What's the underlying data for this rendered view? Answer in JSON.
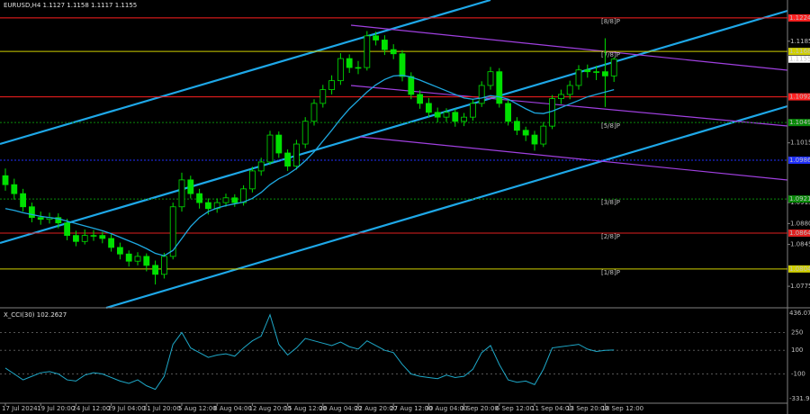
{
  "chart_data": {
    "type": "candlestick",
    "symbol": "EURUSD,H4",
    "categories": [
      "17 Jul 2024",
      null,
      null,
      null,
      "19 Jul 20:00",
      null,
      null,
      null,
      "24 Jul 12:00",
      null,
      null,
      null,
      "29 Jul 04:00",
      null,
      null,
      null,
      "31 Jul 20:00",
      null,
      null,
      null,
      "5 Aug 12:00",
      null,
      null,
      null,
      "8 Aug 04:00",
      null,
      null,
      null,
      "12 Aug 20:00",
      null,
      null,
      null,
      "15 Aug 12:00",
      null,
      null,
      null,
      "20 Aug 04:00",
      null,
      null,
      null,
      "22 Aug 20:00",
      null,
      null,
      null,
      "27 Aug 12:00",
      null,
      null,
      null,
      "30 Aug 04:00",
      null,
      null,
      null,
      "3 Sep 20:00",
      null,
      null,
      null,
      "6 Sep 12:00",
      null,
      null,
      null,
      "11 Sep 04:00",
      null,
      null,
      null,
      "13 Sep 20:00",
      null,
      null,
      null,
      "18 Sep 12:00",
      null
    ],
    "open": [
      1.096,
      1.0945,
      1.093,
      1.0908,
      1.089,
      1.0887,
      1.089,
      1.0881,
      1.086,
      1.085,
      1.086,
      1.086,
      1.0855,
      1.084,
      1.0829,
      1.0817,
      1.0825,
      1.081,
      1.0795,
      1.0825,
      1.0908,
      1.0953,
      1.093,
      1.0915,
      1.0905,
      1.0915,
      1.0923,
      1.0915,
      1.0938,
      1.0968,
      1.0983,
      1.1028,
      1.0998,
      1.0976,
      1.1013,
      1.1051,
      1.1081,
      1.1104,
      1.1119,
      1.1156,
      1.1141,
      1.1141,
      1.1194,
      1.1187,
      1.1171,
      1.1164,
      1.1126,
      1.1096,
      1.1081,
      1.1066,
      1.1058,
      1.1066,
      1.1051,
      1.1058,
      1.1081,
      1.1111,
      1.1134,
      1.1081,
      1.1051,
      1.1036,
      1.1028,
      1.1013,
      1.1043,
      1.1089,
      1.1096,
      1.1111,
      1.1137,
      1.1134,
      1.1134,
      1.1127
    ],
    "high": [
      1.0972,
      1.0955,
      1.0938,
      1.0915,
      1.09,
      1.0898,
      1.0897,
      1.0888,
      1.0868,
      1.087,
      1.0869,
      1.0866,
      1.0862,
      1.0848,
      1.0835,
      1.0832,
      1.083,
      1.0818,
      1.0831,
      1.0915,
      1.0965,
      1.096,
      1.0938,
      1.0922,
      1.0922,
      1.093,
      1.0929,
      1.0944,
      1.0975,
      1.099,
      1.1035,
      1.1034,
      1.1004,
      1.102,
      1.1058,
      1.1088,
      1.1112,
      1.1128,
      1.1165,
      1.1163,
      1.1152,
      1.1202,
      1.1201,
      1.1195,
      1.118,
      1.117,
      1.1133,
      1.1103,
      1.109,
      1.1074,
      1.1073,
      1.1072,
      1.1065,
      1.1088,
      1.1118,
      1.1142,
      1.114,
      1.1088,
      1.1058,
      1.1042,
      1.1035,
      1.105,
      1.1095,
      1.1104,
      1.1119,
      1.1145,
      1.1146,
      1.1144,
      1.119,
      1.1158
    ],
    "low": [
      1.0935,
      1.092,
      1.09,
      1.0882,
      1.0878,
      1.088,
      1.0872,
      1.0852,
      1.0842,
      1.0845,
      1.0851,
      1.0847,
      1.0833,
      1.082,
      1.0808,
      1.081,
      1.08,
      1.0778,
      1.0788,
      1.082,
      1.09,
      1.0922,
      1.0905,
      1.0895,
      1.0898,
      1.0908,
      1.0908,
      1.091,
      1.0932,
      1.096,
      1.0978,
      1.099,
      1.0968,
      1.097,
      1.1006,
      1.1044,
      1.1074,
      1.1096,
      1.1112,
      1.1132,
      1.113,
      1.1136,
      1.1178,
      1.1162,
      1.1155,
      1.1118,
      1.1088,
      1.1072,
      1.1058,
      1.1049,
      1.105,
      1.1042,
      1.1043,
      1.1052,
      1.1075,
      1.1104,
      1.1074,
      1.1044,
      1.1028,
      1.1018,
      1.1002,
      1.1008,
      1.1038,
      1.108,
      1.1088,
      1.1104,
      1.1124,
      1.112,
      1.1075,
      1.1117
    ],
    "close": [
      1.0945,
      1.093,
      1.0908,
      1.089,
      1.0887,
      1.089,
      1.0881,
      1.086,
      1.085,
      1.086,
      1.086,
      1.0855,
      1.084,
      1.0829,
      1.0817,
      1.0825,
      1.081,
      1.0795,
      1.0825,
      1.0908,
      1.0953,
      1.093,
      1.0915,
      1.0905,
      1.0915,
      1.0923,
      1.0915,
      1.0938,
      1.0968,
      1.0983,
      1.1028,
      1.0998,
      1.0976,
      1.1013,
      1.1051,
      1.1081,
      1.1104,
      1.1119,
      1.1156,
      1.1141,
      1.1141,
      1.1194,
      1.1187,
      1.1171,
      1.1164,
      1.1126,
      1.1096,
      1.1081,
      1.1066,
      1.1058,
      1.1066,
      1.1051,
      1.1058,
      1.1081,
      1.1111,
      1.1134,
      1.1081,
      1.1051,
      1.1036,
      1.1028,
      1.1013,
      1.1043,
      1.1089,
      1.1096,
      1.1111,
      1.1137,
      1.1134,
      1.1134,
      1.1127,
      1.1155
    ],
    "candle_color": "#00e000",
    "ma": {
      "color": "#1ea8e0",
      "values": [
        1.0905,
        1.0902,
        1.0898,
        1.0895,
        1.0892,
        1.089,
        1.0888,
        1.0884,
        1.088,
        1.0876,
        1.0872,
        1.0868,
        1.0863,
        1.0857,
        1.0851,
        1.0845,
        1.0838,
        1.083,
        1.0826,
        1.0835,
        1.0855,
        1.0875,
        1.089,
        1.09,
        1.0906,
        1.091,
        1.0913,
        1.0916,
        1.0922,
        1.0932,
        1.0945,
        1.0955,
        1.0962,
        1.0972,
        1.0985,
        1.1,
        1.1018,
        1.1036,
        1.1055,
        1.1072,
        1.1086,
        1.11,
        1.1112,
        1.1121,
        1.1127,
        1.1128,
        1.1125,
        1.112,
        1.1114,
        1.1108,
        1.1102,
        1.1096,
        1.109,
        1.1088,
        1.109,
        1.1094,
        1.1092,
        1.1088,
        1.108,
        1.1072,
        1.1065,
        1.1064,
        1.1068,
        1.1074,
        1.108,
        1.1086,
        1.1092,
        1.1096,
        1.11,
        1.1104
      ]
    },
    "levels": [
      {
        "value": 1.1224,
        "tag": "[8/8]P",
        "color": "#ff2020"
      },
      {
        "value": 1.1168,
        "tag": "[7/8]P",
        "color": "#d0d000"
      },
      {
        "value": 1.1092,
        "color": "#ff2020"
      },
      {
        "value": 1.1049,
        "tag": "[5/8]P",
        "color": "#0a8a0a"
      },
      {
        "value": 1.0986,
        "color": "#2030ff"
      },
      {
        "value": 1.0921,
        "tag": "[3/8]P",
        "color": "#0a8a0a"
      },
      {
        "value": 1.0864,
        "tag": "[2/8]P",
        "color": "#e02020"
      },
      {
        "value": 1.0804,
        "tag": "[1/8]P",
        "color": "#d0d000"
      }
    ],
    "ylim": [
      1.0742,
      1.1254
    ],
    "yticks": [
      1.1185,
      1.1015,
      1.0915,
      {
        "value": 1.088,
        "label": "1.0880"
      },
      1.0845,
      1.0775
    ],
    "indicator": {
      "title": "X_CCI(30)",
      "color": "#1ea8c8",
      "values": [
        -50,
        -100,
        -150,
        -120,
        -90,
        -80,
        -100,
        -150,
        -160,
        -110,
        -90,
        -100,
        -130,
        -160,
        -180,
        -150,
        -200,
        -230,
        -120,
        150,
        250,
        120,
        80,
        40,
        60,
        70,
        50,
        120,
        180,
        220,
        400,
        150,
        60,
        120,
        200,
        180,
        160,
        140,
        170,
        130,
        110,
        180,
        140,
        100,
        80,
        -20,
        -100,
        -120,
        -130,
        -140,
        -110,
        -130,
        -120,
        -60,
        80,
        140,
        -20,
        -150,
        -170,
        -160,
        -190,
        -60,
        120,
        130,
        140,
        150,
        110,
        90,
        100,
        102.2627
      ],
      "ylim": [
        -331.9288,
        436.0738
      ],
      "yticks": [
        250,
        100,
        -100
      ]
    }
  }
}
